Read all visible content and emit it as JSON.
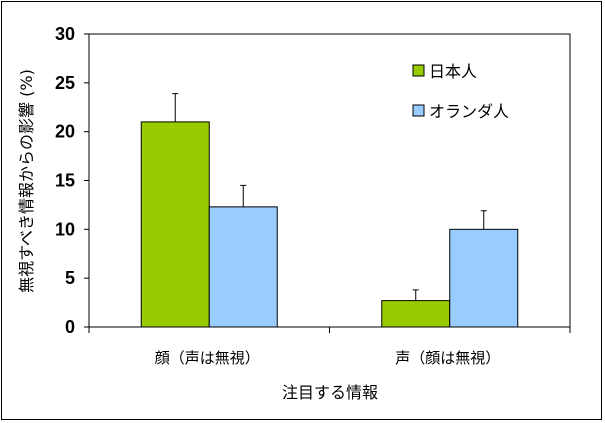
{
  "chart_data": {
    "type": "bar",
    "categories": [
      "顔（声は無視）",
      "声（顔は無視）"
    ],
    "series": [
      {
        "name": "日本人",
        "values": [
          21.0,
          2.7
        ],
        "errors": [
          2.9,
          1.1
        ],
        "color": "#99cc00"
      },
      {
        "name": "オランダ人",
        "values": [
          12.3,
          10.0
        ],
        "errors": [
          2.2,
          1.9
        ],
        "color": "#99ccff"
      }
    ],
    "yticks": [
      0,
      5,
      10,
      15,
      20,
      25,
      30
    ],
    "ylim": [
      0,
      30
    ],
    "xlabel": "注目する情報",
    "ylabel": "無視すべき情報からの影響 (%)",
    "legend_position": "top-right",
    "grid": false
  }
}
